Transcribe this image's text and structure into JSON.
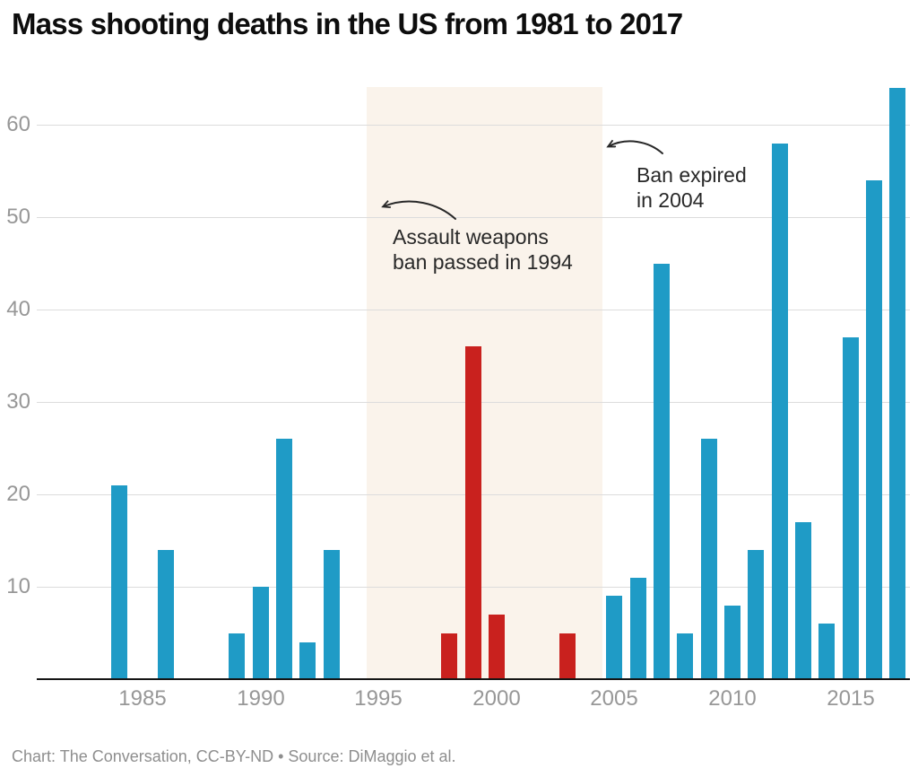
{
  "title": "Mass shooting deaths in the US from 1981 to 2017",
  "footer": "Chart: The Conversation, CC-BY-ND • Source: DiMaggio et al.",
  "annotations": {
    "ban_passed": {
      "line1": "Assault weapons",
      "line2": "ban passed in 1994"
    },
    "ban_expired": {
      "line1": "Ban expired",
      "line2": "in 2004"
    }
  },
  "colors": {
    "bar_default": "#1f9bc6",
    "bar_ban_period": "#c9211e",
    "ban_region_bg": "#faf3eb",
    "gridline": "#dcdcdc",
    "axis_line": "#151515",
    "tick_label": "#979797",
    "annotation_text": "#282828",
    "footer_text": "#8e8e8e",
    "title_text": "#0d0d0d"
  },
  "chart_data": {
    "type": "bar",
    "title": "Mass shooting deaths in the US from 1981 to 2017",
    "xlabel": "",
    "ylabel": "",
    "x_range": [
      1980.5,
      2017.5
    ],
    "ylim": [
      0,
      64
    ],
    "grid": "horizontal",
    "legend": "none",
    "y_ticks": [
      10,
      20,
      30,
      40,
      50,
      60
    ],
    "x_ticks": [
      1985,
      1990,
      1995,
      2000,
      2005,
      2010,
      2015
    ],
    "ban_period": {
      "start": 1994.5,
      "end": 2004.5
    },
    "bars": [
      {
        "year": 1984,
        "deaths": 21,
        "during_ban": false
      },
      {
        "year": 1986,
        "deaths": 14,
        "during_ban": false
      },
      {
        "year": 1989,
        "deaths": 5,
        "during_ban": false
      },
      {
        "year": 1990,
        "deaths": 10,
        "during_ban": false
      },
      {
        "year": 1991,
        "deaths": 26,
        "during_ban": false
      },
      {
        "year": 1992,
        "deaths": 4,
        "during_ban": false
      },
      {
        "year": 1993,
        "deaths": 14,
        "during_ban": false
      },
      {
        "year": 1998,
        "deaths": 5,
        "during_ban": true
      },
      {
        "year": 1999,
        "deaths": 36,
        "during_ban": true
      },
      {
        "year": 2000,
        "deaths": 7,
        "during_ban": true
      },
      {
        "year": 2003,
        "deaths": 5,
        "during_ban": true
      },
      {
        "year": 2005,
        "deaths": 9,
        "during_ban": false
      },
      {
        "year": 2006,
        "deaths": 11,
        "during_ban": false
      },
      {
        "year": 2007,
        "deaths": 45,
        "during_ban": false
      },
      {
        "year": 2008,
        "deaths": 5,
        "during_ban": false
      },
      {
        "year": 2009,
        "deaths": 26,
        "during_ban": false
      },
      {
        "year": 2010,
        "deaths": 8,
        "during_ban": false
      },
      {
        "year": 2011,
        "deaths": 14,
        "during_ban": false
      },
      {
        "year": 2012,
        "deaths": 58,
        "during_ban": false
      },
      {
        "year": 2013,
        "deaths": 17,
        "during_ban": false
      },
      {
        "year": 2014,
        "deaths": 6,
        "during_ban": false
      },
      {
        "year": 2015,
        "deaths": 37,
        "during_ban": false
      },
      {
        "year": 2016,
        "deaths": 54,
        "during_ban": false
      },
      {
        "year": 2017,
        "deaths": 64,
        "during_ban": false
      }
    ]
  }
}
